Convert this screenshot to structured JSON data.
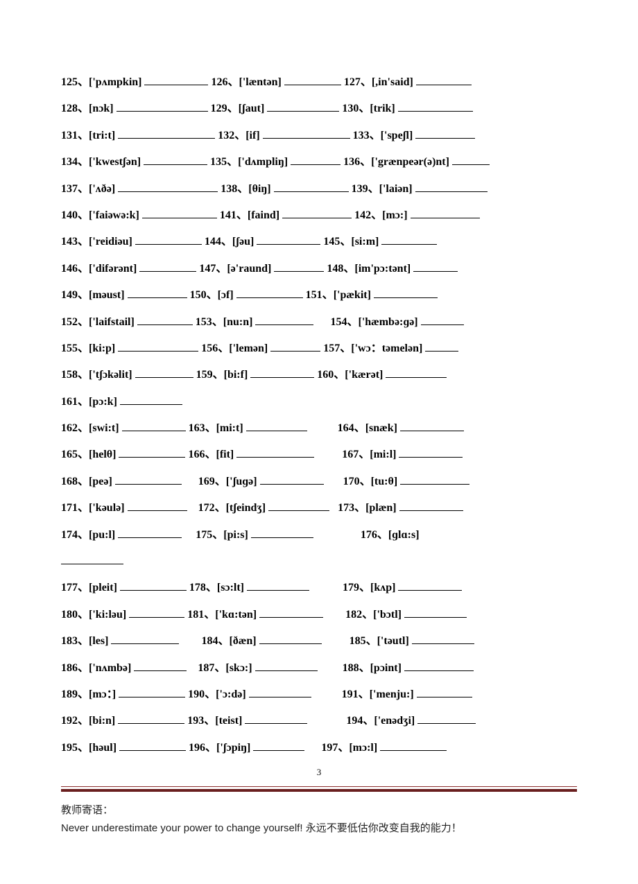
{
  "rows": [
    {
      "segments": [
        {
          "num": "125",
          "ipa": "['pʌmpkin]",
          "blank": 92
        },
        {
          "num": "126",
          "ipa": "['læntən]",
          "blank": 82
        },
        {
          "num": "127",
          "ipa": "[,in'said]",
          "blank": 80
        }
      ]
    },
    {
      "segments": [
        {
          "num": "128",
          "ipa": "[nɔk]",
          "blank": 132
        },
        {
          "num": "129",
          "ipa": "[ʃaut]",
          "blank": 104
        },
        {
          "num": "130",
          "ipa": "[trik]",
          "blank": 108
        }
      ]
    },
    {
      "segments": [
        {
          "num": "131",
          "ipa": "[tri:t]",
          "blank": 140
        },
        {
          "num": "132",
          "ipa": "[if]",
          "blank": 126
        },
        {
          "num": "133",
          "ipa": "['speʃl]",
          "blank": 86
        }
      ]
    },
    {
      "segments": [
        {
          "num": "134",
          "ipa": "['kwestʃən]",
          "blank": 92
        },
        {
          "num": "135",
          "ipa": "['dʌmpliŋ]",
          "blank": 72
        },
        {
          "num": "136",
          "ipa": "['grænpeər(ə)nt]",
          "blank": 54
        }
      ]
    },
    {
      "segments": [
        {
          "num": "137",
          "ipa": "['ʌðə]",
          "blank": 144
        },
        {
          "num": "138",
          "ipa": "[θiŋ]",
          "blank": 108
        },
        {
          "num": "139",
          "ipa": "['laiən]",
          "blank": 104
        }
      ]
    },
    {
      "segments": [
        {
          "num": "140",
          "ipa": "['faiəwə:k]",
          "blank": 108
        },
        {
          "num": "141",
          "ipa": "[faind]",
          "blank": 100
        },
        {
          "num": "142",
          "ipa": "[mɔ:]",
          "blank": 100
        }
      ]
    },
    {
      "segments": [
        {
          "num": "143",
          "ipa": "['reidiəu]",
          "blank": 96
        },
        {
          "num": "144",
          "ipa": "[ʃəu]",
          "blank": 92
        },
        {
          "num": "145",
          "ipa": "[si:m]",
          "blank": 80
        }
      ]
    },
    {
      "segments": [
        {
          "num": "146",
          "ipa": "['difərənt]",
          "blank": 82
        },
        {
          "num": "147",
          "ipa": "[ə'raund]",
          "blank": 72
        },
        {
          "num": "148",
          "ipa": "[im'pɔ:tənt]",
          "blank": 64
        }
      ]
    },
    {
      "segments": [
        {
          "num": "149",
          "ipa": "[məust]",
          "blank": 86
        },
        {
          "num": "150",
          "ipa": "[ɔf]",
          "blank": 96
        },
        {
          "num": "151",
          "ipa": "['pækit]",
          "blank": 92
        }
      ]
    },
    {
      "segments": [
        {
          "num": "152",
          "ipa": "['laifstail]",
          "blank": 80
        },
        {
          "num": "153",
          "ipa": "[nu:n]",
          "blank": 84,
          "after": "      "
        },
        {
          "num": "154",
          "ipa": "['hæmbə:ɡə]",
          "blank": 62
        }
      ]
    },
    {
      "segments": [
        {
          "num": "155",
          "ipa": "[ki:p]",
          "blank": 116
        },
        {
          "num": "156",
          "ipa": "['lemən]",
          "blank": 72
        },
        {
          "num": "157",
          "ipa": "['wɔ：təmelən]",
          "blank": 48
        }
      ]
    },
    {
      "segments": [
        {
          "num": "158",
          "ipa": "['tʃɔkəlit]",
          "blank": 84
        },
        {
          "num": "159",
          "ipa": "[bi:f]",
          "blank": 92
        },
        {
          "num": "160",
          "ipa": "['kærət]",
          "blank": 88
        }
      ]
    },
    {
      "segments": [
        {
          "num": "161",
          "ipa": "[pɔ:k]",
          "blank": 90
        }
      ]
    },
    {
      "segments": [
        {
          "num": "162",
          "ipa": "[swi:t]",
          "blank": 92
        },
        {
          "num": "163",
          "ipa": "[mi:t]",
          "blank": 88,
          "after": "           "
        },
        {
          "num": "164",
          "ipa": "[snæk]",
          "blank": 92
        }
      ]
    },
    {
      "segments": [
        {
          "num": "165",
          "ipa": "[helθ]",
          "blank": 96
        },
        {
          "num": "166",
          "ipa": "[fit]",
          "blank": 112,
          "after": "          "
        },
        {
          "num": "167",
          "ipa": "[mi:l]",
          "blank": 92
        }
      ]
    },
    {
      "segments": [
        {
          "num": "168",
          "ipa": "[peə]",
          "blank": 96,
          "after": "      "
        },
        {
          "num": "169",
          "ipa": "['ʃuɡə]",
          "blank": 92,
          "after": "       "
        },
        {
          "num": "170",
          "ipa": "[tu:θ]",
          "blank": 100
        }
      ]
    },
    {
      "segments": [
        {
          "num": "171",
          "ipa": "['kəulə]",
          "blank": 86,
          "after": "    "
        },
        {
          "num": "172",
          "ipa": "[tʃeindʒ]",
          "blank": 88,
          "after": "   "
        },
        {
          "num": "173",
          "ipa": "[plæn]",
          "blank": 92
        }
      ]
    },
    {
      "segments": [
        {
          "num": "174",
          "ipa": "[pu:l]",
          "blank": 92,
          "after": "     "
        },
        {
          "num": "175",
          "ipa": "[pi:s]",
          "blank": 90,
          "after": "                 "
        },
        {
          "num": "176",
          "ipa": "[ɡlɑ:s]",
          "blank": 0
        }
      ]
    },
    {
      "segments": [
        {
          "blank_only": true,
          "blank": 90
        }
      ]
    },
    {
      "segments": [
        {
          "num": "177",
          "ipa": "[pleit]",
          "blank": 96
        },
        {
          "num": "178",
          "ipa": "[sɔ:lt]",
          "blank": 90,
          "after": "            "
        },
        {
          "num": "179",
          "ipa": "[kʌp]",
          "blank": 92
        }
      ]
    },
    {
      "segments": [
        {
          "num": "180",
          "ipa": "['ki:ləu]",
          "blank": 80
        },
        {
          "num": "181",
          "ipa": "['kɑ:tən]",
          "blank": 92,
          "after": "        "
        },
        {
          "num": "182",
          "ipa": "['bɔtl]",
          "blank": 90
        }
      ]
    },
    {
      "segments": [
        {
          "num": "183",
          "ipa": "[les]",
          "blank": 98,
          "after": "        "
        },
        {
          "num": "184",
          "ipa": "[ðæn]",
          "blank": 90,
          "after": "          "
        },
        {
          "num": "185",
          "ipa": "['təutl]",
          "blank": 90
        }
      ]
    },
    {
      "segments": [
        {
          "num": "186",
          "ipa": "['nʌmbə]",
          "blank": 76,
          "after": "    "
        },
        {
          "num": "187",
          "ipa": "[skɔ:]",
          "blank": 90,
          "after": "         "
        },
        {
          "num": "188",
          "ipa": "[pɔint]",
          "blank": 100
        }
      ]
    },
    {
      "segments": [
        {
          "num": "189",
          "ipa": "[mɔ：]",
          "blank": 96
        },
        {
          "num": "190",
          "ipa": "['ɔ:də]",
          "blank": 90,
          "after": "           "
        },
        {
          "num": "191",
          "ipa": "['menju:]",
          "blank": 80
        }
      ]
    },
    {
      "segments": [
        {
          "num": "192",
          "ipa": "[bi:n]",
          "blank": 96
        },
        {
          "num": "193",
          "ipa": "[teist]",
          "blank": 90,
          "after": "              "
        },
        {
          "num": "194",
          "ipa": "['enədʒi]",
          "blank": 84
        }
      ]
    },
    {
      "segments": [
        {
          "num": "195",
          "ipa": "[həul]",
          "blank": 96
        },
        {
          "num": "196",
          "ipa": "['ʃɔpiŋ]",
          "blank": 74,
          "after": "      "
        },
        {
          "num": "197",
          "ipa": "[mɔ:l]",
          "blank": 96
        }
      ]
    }
  ],
  "pageNumber": "3",
  "footer": {
    "label": "教师寄语：",
    "quote_en": "Never underestimate your power to change yourself! ",
    "quote_zh": "永远不要低估你改变自我的能力！"
  },
  "style": {
    "text_color": "#000000",
    "bg": "#ffffff",
    "rule_color_top": "#8a2a2a",
    "rule_color_bot": "#6a1f1f"
  }
}
